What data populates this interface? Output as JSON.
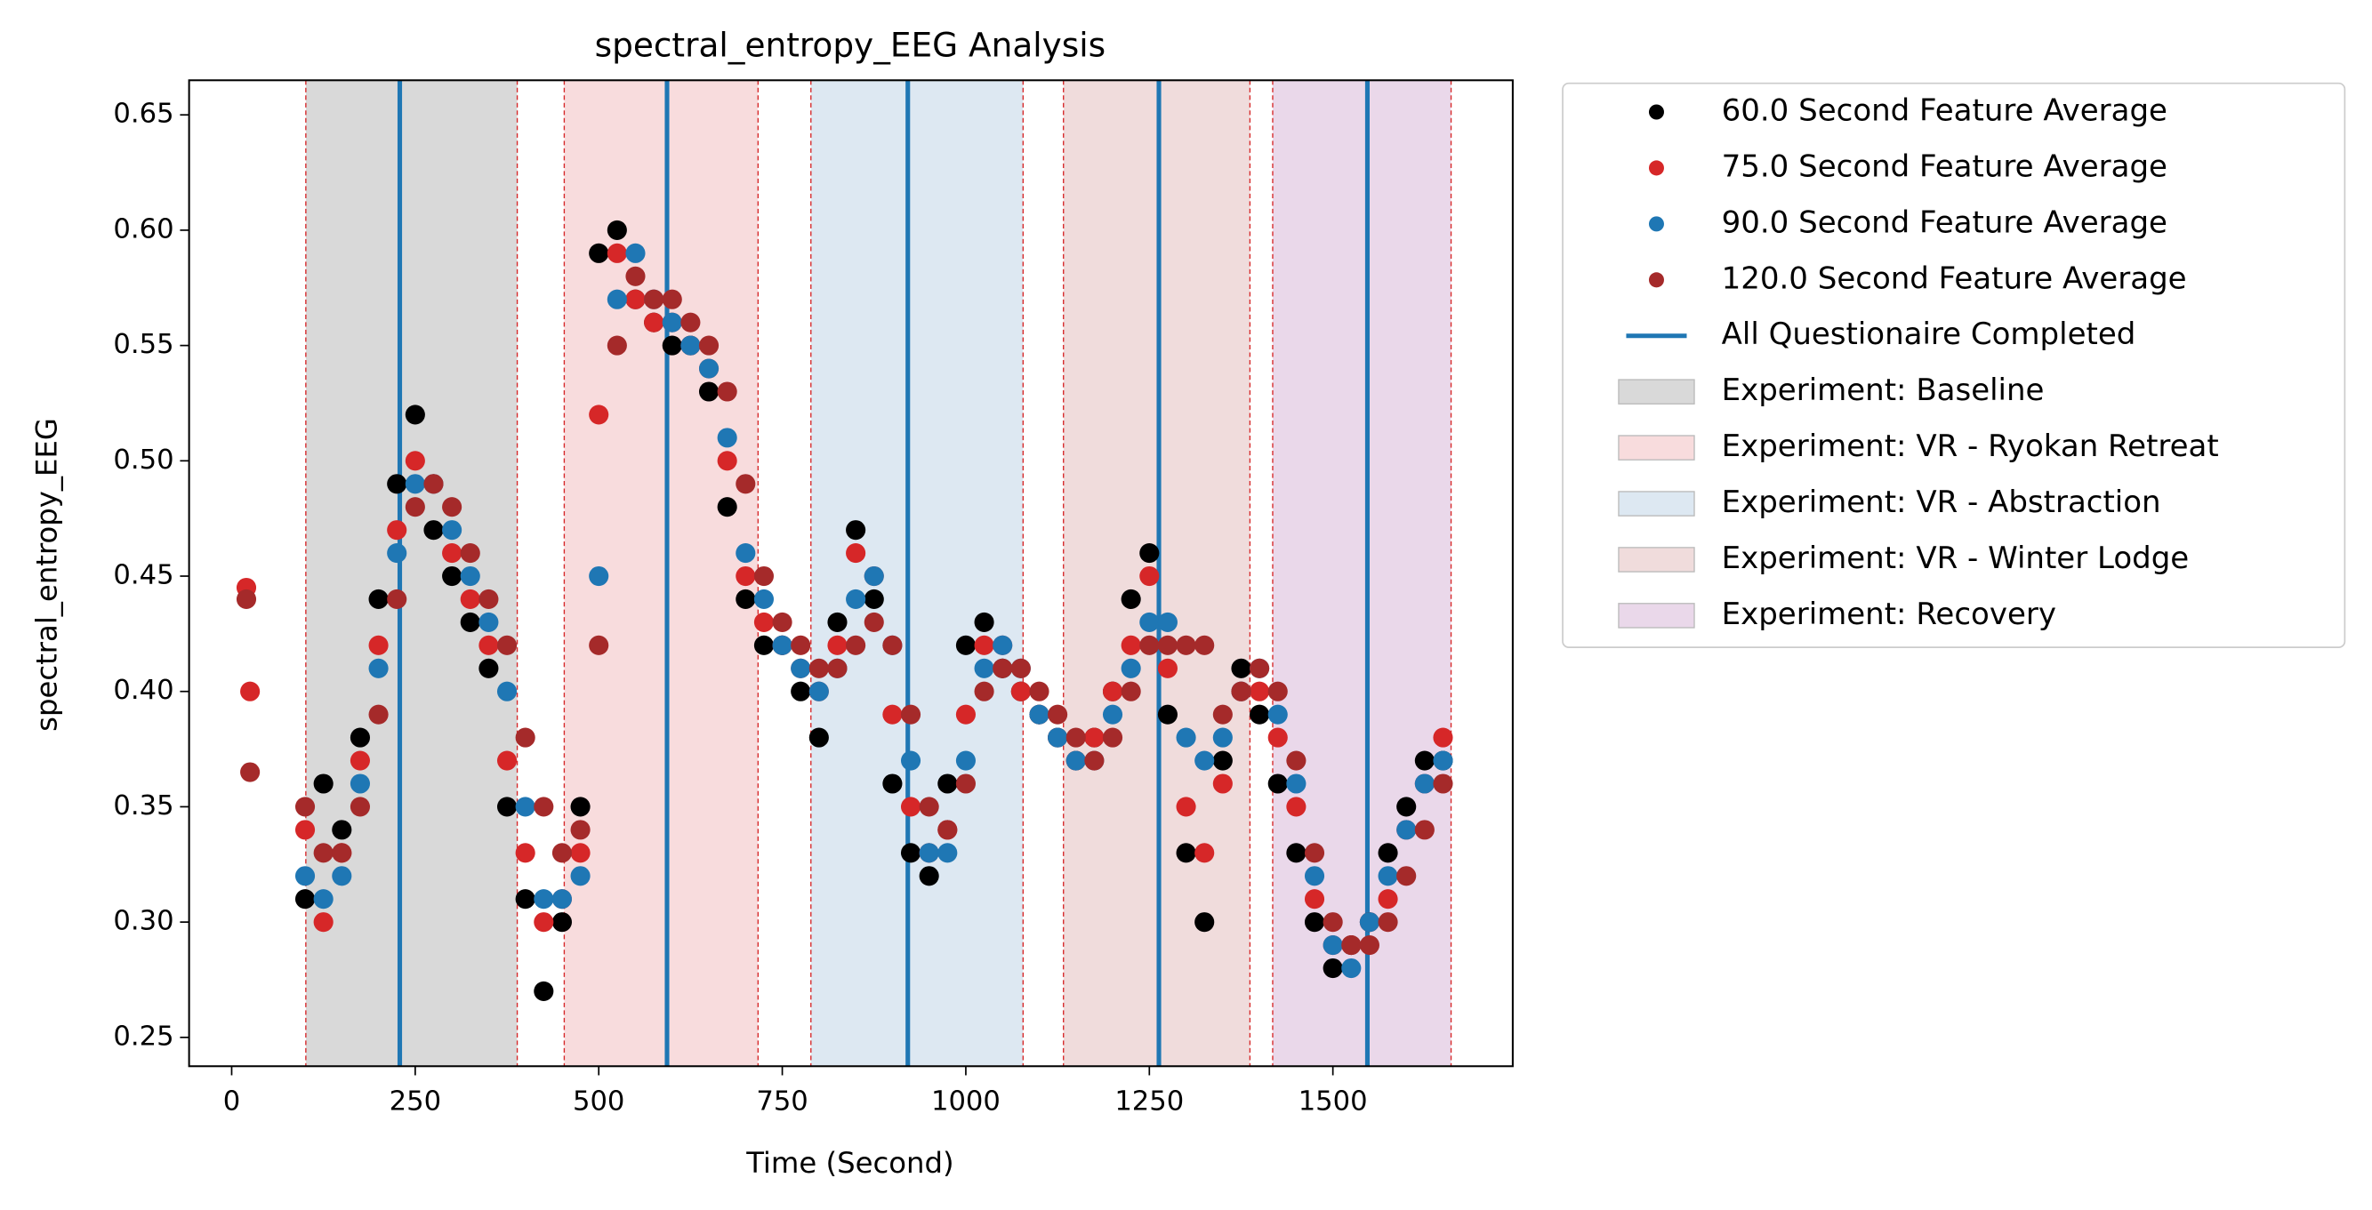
{
  "chart_data": {
    "type": "scatter",
    "title": "spectral_entropy_EEG Analysis",
    "xlabel": "Time (Second)",
    "ylabel": "spectral_entropy_EEG",
    "xlim": [
      -58,
      1745
    ],
    "ylim": [
      0.2375,
      0.665
    ],
    "xticks": [
      0,
      250,
      500,
      750,
      1000,
      1250,
      1500
    ],
    "yticks": [
      0.25,
      {
        "value": 0.3,
        "label": "0.30"
      },
      0.35,
      {
        "value": 0.4,
        "label": "0.40"
      },
      0.45,
      {
        "value": 0.5,
        "label": "0.50"
      },
      0.55,
      {
        "value": 0.6,
        "label": "0.60"
      },
      0.65
    ],
    "x": [
      20,
      25,
      100,
      125,
      150,
      175,
      200,
      225,
      250,
      275,
      300,
      325,
      350,
      375,
      400,
      425,
      450,
      475,
      500,
      525,
      550,
      575,
      600,
      625,
      650,
      675,
      700,
      725,
      750,
      775,
      800,
      825,
      850,
      875,
      900,
      925,
      950,
      975,
      1000,
      1025,
      1050,
      1075,
      1100,
      1125,
      1150,
      1175,
      1200,
      1225,
      1250,
      1275,
      1300,
      1325,
      1350,
      1375,
      1400,
      1425,
      1450,
      1475,
      1500,
      1525,
      1550,
      1575,
      1600,
      1625,
      1650
    ],
    "series": [
      {
        "name": "60.0 Second Feature Average",
        "color": "#000000",
        "values": [
          null,
          null,
          0.31,
          0.36,
          0.34,
          0.38,
          0.44,
          0.49,
          0.52,
          0.47,
          0.45,
          0.43,
          0.41,
          0.35,
          0.31,
          0.27,
          0.3,
          0.35,
          0.59,
          0.6,
          0.57,
          0.56,
          0.55,
          0.55,
          0.53,
          0.48,
          0.44,
          0.42,
          0.42,
          0.4,
          0.38,
          0.43,
          0.47,
          0.44,
          0.36,
          0.33,
          0.32,
          0.36,
          0.42,
          0.43,
          0.41,
          0.4,
          0.39,
          0.38,
          0.37,
          0.38,
          0.4,
          0.44,
          0.46,
          0.39,
          0.33,
          0.3,
          0.37,
          0.41,
          0.39,
          0.36,
          0.33,
          0.3,
          0.28,
          0.29,
          0.3,
          0.33,
          0.35,
          0.37,
          0.37
        ]
      },
      {
        "name": "75.0 Second Feature Average",
        "color": "#d62728",
        "values": [
          0.445,
          0.4,
          0.34,
          0.3,
          0.33,
          0.37,
          0.42,
          0.47,
          0.5,
          0.49,
          0.46,
          0.44,
          0.42,
          0.37,
          0.33,
          0.3,
          0.31,
          0.33,
          0.52,
          0.59,
          0.57,
          0.56,
          0.56,
          0.55,
          0.54,
          0.5,
          0.45,
          0.43,
          0.42,
          0.41,
          0.4,
          0.42,
          0.46,
          0.45,
          0.39,
          0.35,
          0.33,
          0.34,
          0.39,
          0.42,
          0.42,
          0.4,
          0.39,
          0.38,
          0.37,
          0.38,
          0.4,
          0.42,
          0.45,
          0.41,
          0.35,
          0.33,
          0.36,
          0.4,
          0.4,
          0.38,
          0.35,
          0.31,
          0.29,
          0.29,
          0.3,
          0.31,
          0.34,
          0.36,
          0.38
        ]
      },
      {
        "name": "90.0 Second Feature Average",
        "color": "#1f77b4",
        "values": [
          null,
          null,
          0.32,
          0.31,
          0.32,
          0.36,
          0.41,
          0.46,
          0.49,
          0.49,
          0.47,
          0.45,
          0.43,
          0.4,
          0.35,
          0.31,
          0.31,
          0.32,
          0.45,
          0.57,
          0.59,
          0.57,
          0.56,
          0.55,
          0.54,
          0.51,
          0.46,
          0.44,
          0.42,
          0.41,
          0.4,
          0.41,
          0.44,
          0.45,
          0.42,
          0.37,
          0.33,
          0.33,
          0.37,
          0.41,
          0.42,
          0.41,
          0.39,
          0.38,
          0.37,
          0.37,
          0.39,
          0.41,
          0.43,
          0.43,
          0.38,
          0.37,
          0.38,
          0.4,
          0.41,
          0.39,
          0.36,
          0.32,
          0.29,
          0.28,
          0.3,
          0.32,
          0.34,
          0.36,
          0.37
        ]
      },
      {
        "name": "120.0 Second Feature Average",
        "color": "#a52a2a",
        "values": [
          0.44,
          0.365,
          0.35,
          0.33,
          0.33,
          0.35,
          0.39,
          0.44,
          0.48,
          0.49,
          0.48,
          0.46,
          0.44,
          0.42,
          0.38,
          0.35,
          0.33,
          0.34,
          0.42,
          0.55,
          0.58,
          0.57,
          0.57,
          0.56,
          0.55,
          0.53,
          0.49,
          0.45,
          0.43,
          0.42,
          0.41,
          0.41,
          0.42,
          0.43,
          0.42,
          0.39,
          0.35,
          0.34,
          0.36,
          0.4,
          0.41,
          0.41,
          0.4,
          0.39,
          0.38,
          0.37,
          0.38,
          0.4,
          0.42,
          0.42,
          0.42,
          0.42,
          0.39,
          0.4,
          0.41,
          0.4,
          0.37,
          0.33,
          0.3,
          0.29,
          0.29,
          0.3,
          0.32,
          0.34,
          0.36
        ]
      }
    ],
    "vlines": {
      "name": "All Questionaire Completed",
      "color": "#1f77b4",
      "x": [
        229,
        593,
        921,
        1263,
        1547
      ]
    },
    "spans": [
      {
        "name": "Experiment: Baseline",
        "color": "#d9d9d9",
        "start": 101,
        "end": 389
      },
      {
        "name": "Experiment: VR - Ryokan Retreat",
        "color": "#f8dcdd",
        "start": 453,
        "end": 717
      },
      {
        "name": "Experiment: VR - Abstraction",
        "color": "#dde8f2",
        "start": 789,
        "end": 1078
      },
      {
        "name": "Experiment: VR - Winter Lodge",
        "color": "#f0dcdc",
        "start": 1133,
        "end": 1387
      },
      {
        "name": "Experiment: Recovery",
        "color": "#ead8ea",
        "start": 1418,
        "end": 1661
      }
    ]
  }
}
